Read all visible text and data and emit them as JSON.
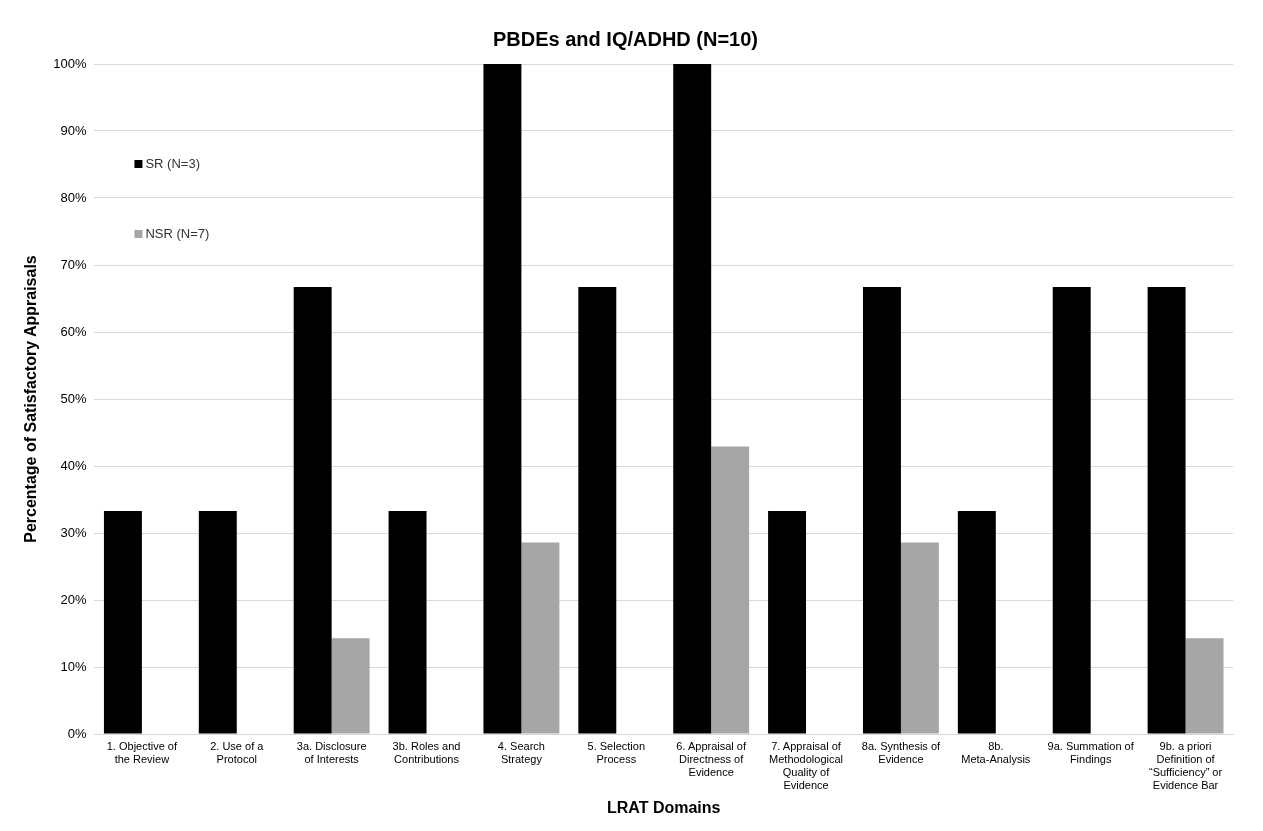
{
  "chart_data": {
    "type": "bar",
    "title": "PBDEs and IQ/ADHD (N=10)",
    "xlabel": "LRAT Domains",
    "ylabel": "Percentage of Satisfactory Appraisals",
    "categories": [
      "1. Objective of the Review",
      "2. Use of a Protocol",
      "3a. Disclosure of Interests",
      "3b. Roles and Contributions",
      "4. Search Strategy",
      "5. Selection Process",
      "6. Appraisal of Directness of Evidence",
      "7. Appraisal of Methodological Quality of Evidence",
      "8a. Synthesis of Evidence",
      "8b. Meta-Analysis",
      "9a. Summation of Findings",
      "9b. a priori Definition of “Sufficiency” or Evidence Bar"
    ],
    "series": [
      {
        "name": "SR (N=3)",
        "color": "#000000",
        "values": [
          33.3,
          33.3,
          66.7,
          33.3,
          100,
          66.7,
          100,
          33.3,
          66.7,
          33.3,
          66.7,
          66.7
        ]
      },
      {
        "name": "NSR (N=7)",
        "color": "#a6a6a6",
        "values": [
          0,
          0,
          14.3,
          0,
          28.6,
          0,
          42.9,
          0,
          28.6,
          0,
          0,
          14.3
        ]
      }
    ],
    "ylim": [
      0,
      100
    ],
    "yticks": [
      {
        "value": 0,
        "label": "0%"
      },
      {
        "value": 10,
        "label": "10%"
      },
      {
        "value": 20,
        "label": "20%"
      },
      {
        "value": 30,
        "label": "30%"
      },
      {
        "value": 40,
        "label": "40%"
      },
      {
        "value": 50,
        "label": "50%"
      },
      {
        "value": 60,
        "label": "60%"
      },
      {
        "value": 70,
        "label": "70%"
      },
      {
        "value": 80,
        "label": "80%"
      },
      {
        "value": 90,
        "label": "90%"
      },
      {
        "value": 100,
        "label": "100%"
      }
    ],
    "grid": "y",
    "legend": "top left"
  }
}
